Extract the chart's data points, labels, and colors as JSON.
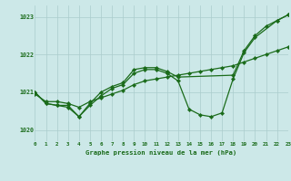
{
  "background_color": "#cce8e8",
  "grid_color": "#aacccc",
  "line_color": "#1a6b1a",
  "marker_color": "#1a6b1a",
  "title": "Graphe pression niveau de la mer (hPa)",
  "xlim": [
    0,
    23
  ],
  "ylim": [
    1019.7,
    1023.3
  ],
  "yticks": [
    1020,
    1021,
    1022,
    1023
  ],
  "xticks": [
    0,
    1,
    2,
    3,
    4,
    5,
    6,
    7,
    8,
    9,
    10,
    11,
    12,
    13,
    14,
    15,
    16,
    17,
    18,
    19,
    20,
    21,
    22,
    23
  ],
  "series": [
    {
      "x": [
        0,
        1,
        2,
        3,
        4,
        5,
        6,
        7,
        8,
        9,
        10,
        11,
        12,
        13,
        14,
        15,
        16,
        17,
        18,
        19,
        20,
        21,
        22,
        23
      ],
      "y": [
        1020.95,
        1020.75,
        1020.75,
        1020.7,
        1020.6,
        1020.75,
        1020.85,
        1020.95,
        1021.05,
        1021.2,
        1021.3,
        1021.35,
        1021.4,
        1021.45,
        1021.5,
        1021.55,
        1021.6,
        1021.65,
        1021.7,
        1021.8,
        1021.9,
        1022.0,
        1022.1,
        1022.2
      ]
    },
    {
      "x": [
        0,
        1,
        2,
        3,
        4,
        5,
        6,
        7,
        8,
        9,
        10,
        11,
        12,
        13,
        14,
        15,
        16,
        17,
        18,
        19,
        20,
        22,
        23
      ],
      "y": [
        1021.0,
        1020.7,
        1020.65,
        1020.65,
        1020.35,
        1020.65,
        1020.9,
        1021.1,
        1021.2,
        1021.5,
        1021.6,
        1021.6,
        1021.5,
        1021.3,
        1020.55,
        1020.4,
        1020.35,
        1020.45,
        1021.35,
        1022.05,
        1022.45,
        1022.9,
        1023.05
      ]
    },
    {
      "x": [
        0,
        1,
        2,
        3,
        4,
        5,
        6,
        7,
        8,
        9,
        10,
        11,
        12,
        13,
        18,
        19,
        20,
        21,
        22,
        23
      ],
      "y": [
        1021.0,
        1020.7,
        1020.65,
        1020.6,
        1020.35,
        1020.7,
        1021.0,
        1021.15,
        1021.25,
        1021.6,
        1021.65,
        1021.65,
        1021.55,
        1021.4,
        1021.45,
        1022.1,
        1022.5,
        1022.75,
        1022.9,
        1023.05
      ]
    }
  ]
}
